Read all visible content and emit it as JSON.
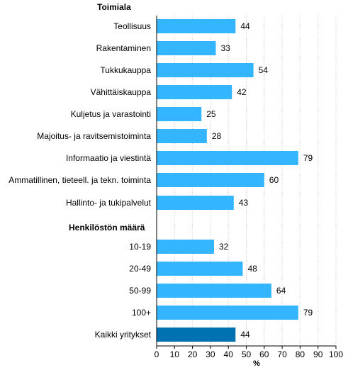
{
  "chart_data": {
    "type": "bar",
    "orientation": "horizontal",
    "xlabel": "%",
    "xlim": [
      0,
      100
    ],
    "xticks": [
      0,
      10,
      20,
      30,
      40,
      50,
      60,
      70,
      80,
      90,
      100
    ],
    "grid": "vertical-dotted",
    "groups": [
      {
        "heading": "Toimiala",
        "categories": [
          "Teollisuus",
          "Rakentaminen",
          "Tukkukauppa",
          "Vähittäiskauppa",
          "Kuljetus ja varastointi",
          "Majoitus- ja ravitsemistoiminta",
          "Informaatio ja viestintä",
          "Ammatillinen, tieteell. ja tekn. toiminta",
          "Hallinto- ja tukipalvelut"
        ],
        "values": [
          44,
          33,
          54,
          42,
          25,
          28,
          79,
          60,
          43
        ]
      },
      {
        "heading": "Henkilöstön määrä",
        "categories": [
          "10-19",
          "20-49",
          "50-99",
          "100+"
        ],
        "values": [
          32,
          48,
          64,
          79
        ]
      },
      {
        "heading": "",
        "categories": [
          "Kaikki yritykset"
        ],
        "values": [
          44
        ],
        "highlight": true
      }
    ],
    "colors": {
      "bar": "#33b6ff",
      "highlight": "#0072b2",
      "grid": "#c8c8c8",
      "axis": "#000000"
    }
  }
}
